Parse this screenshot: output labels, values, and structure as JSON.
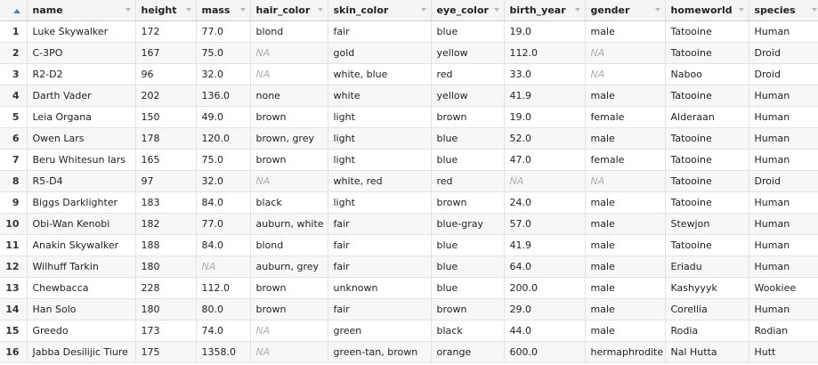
{
  "columns": [
    "name",
    "height",
    "mass",
    "hair_color",
    "skin_color",
    "eye_color",
    "birth_year",
    "gender",
    "homeworld",
    "species"
  ],
  "na_label": "NA",
  "rows": [
    [
      "Luke Skywalker",
      "172",
      "77.0",
      "blond",
      "fair",
      "blue",
      "19.0",
      "male",
      "Tatooine",
      "Human"
    ],
    [
      "C-3PO",
      "167",
      "75.0",
      null,
      "gold",
      "yellow",
      "112.0",
      null,
      "Tatooine",
      "Droid"
    ],
    [
      "R2-D2",
      "96",
      "32.0",
      null,
      "white, blue",
      "red",
      "33.0",
      null,
      "Naboo",
      "Droid"
    ],
    [
      "Darth Vader",
      "202",
      "136.0",
      "none",
      "white",
      "yellow",
      "41.9",
      "male",
      "Tatooine",
      "Human"
    ],
    [
      "Leia Organa",
      "150",
      "49.0",
      "brown",
      "light",
      "brown",
      "19.0",
      "female",
      "Alderaan",
      "Human"
    ],
    [
      "Owen Lars",
      "178",
      "120.0",
      "brown, grey",
      "light",
      "blue",
      "52.0",
      "male",
      "Tatooine",
      "Human"
    ],
    [
      "Beru Whitesun lars",
      "165",
      "75.0",
      "brown",
      "light",
      "blue",
      "47.0",
      "female",
      "Tatooine",
      "Human"
    ],
    [
      "R5-D4",
      "97",
      "32.0",
      null,
      "white, red",
      "red",
      null,
      null,
      "Tatooine",
      "Droid"
    ],
    [
      "Biggs Darklighter",
      "183",
      "84.0",
      "black",
      "light",
      "brown",
      "24.0",
      "male",
      "Tatooine",
      "Human"
    ],
    [
      "Obi-Wan Kenobi",
      "182",
      "77.0",
      "auburn, white",
      "fair",
      "blue-gray",
      "57.0",
      "male",
      "Stewjon",
      "Human"
    ],
    [
      "Anakin Skywalker",
      "188",
      "84.0",
      "blond",
      "fair",
      "blue",
      "41.9",
      "male",
      "Tatooine",
      "Human"
    ],
    [
      "Wilhuff Tarkin",
      "180",
      null,
      "auburn, grey",
      "fair",
      "blue",
      "64.0",
      "male",
      "Eriadu",
      "Human"
    ],
    [
      "Chewbacca",
      "228",
      "112.0",
      "brown",
      "unknown",
      "blue",
      "200.0",
      "male",
      "Kashyyyk",
      "Wookiee"
    ],
    [
      "Han Solo",
      "180",
      "80.0",
      "brown",
      "fair",
      "brown",
      "29.0",
      "male",
      "Corellia",
      "Human"
    ],
    [
      "Greedo",
      "173",
      "74.0",
      null,
      "green",
      "black",
      "44.0",
      "male",
      "Rodia",
      "Rodian"
    ],
    [
      "Jabba Desilijic Tiure",
      "175",
      "1358.0",
      null,
      "green-tan, brown",
      "orange",
      "600.0",
      "hermaphrodite",
      "Nal Hutta",
      "Hutt"
    ]
  ],
  "colors": {
    "sort_accent": "#3b86c8",
    "na_text": "#b0b0b0",
    "header_bg": "#f5f5f5",
    "stripe_bg": "#f7f7f7"
  },
  "icons": {
    "sort": "sort-ascending-icon",
    "filter": "column-filter-icon"
  }
}
